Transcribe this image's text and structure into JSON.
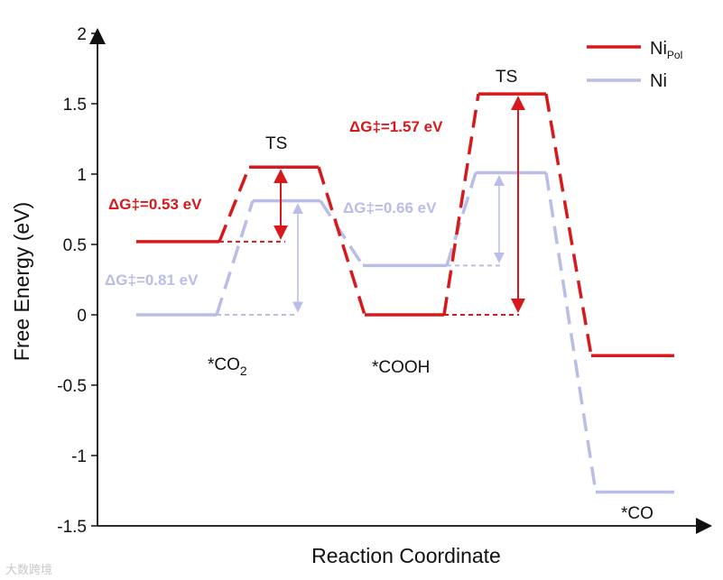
{
  "chart_data": {
    "type": "line",
    "title": "",
    "xlabel": "Reaction Coordinate",
    "ylabel": "Free Energy (eV)",
    "ylim": [
      -1.5,
      2
    ],
    "yticks": [
      "2",
      "1.5",
      "1",
      "0.5",
      "0",
      "-0.5",
      "-1",
      "-1.5"
    ],
    "yticks_values": [
      2,
      1.5,
      1,
      0.5,
      0,
      -0.5,
      -1,
      -1.5
    ],
    "states": [
      "*CO2",
      "TS",
      "*COOH",
      "TS",
      "*CO"
    ],
    "series": [
      {
        "name": "NiPol",
        "legend_main": "Ni",
        "legend_sub": "Pol",
        "color": "#d7191c",
        "values": [
          0.52,
          1.05,
          0.0,
          1.57,
          -0.29
        ]
      },
      {
        "name": "Ni",
        "legend_main": "Ni",
        "legend_sub": "",
        "color": "#b9bde8",
        "values": [
          0.0,
          0.81,
          0.35,
          1.01,
          -1.26
        ]
      }
    ],
    "annotations": {
      "barrier_red_1": "ΔG‡=0.53 eV",
      "barrier_red_2": "ΔG‡=1.57 eV",
      "barrier_blue_1": "ΔG‡=0.81 eV",
      "barrier_blue_2": "ΔG‡=0.66 eV"
    },
    "state_labels": {
      "co2_main": "*CO",
      "co2_sub": "2",
      "ts1": "TS",
      "cooh": "*COOH",
      "ts2": "TS",
      "co": "*CO"
    },
    "legend_position": "top-right"
  },
  "watermark": "大数跨境"
}
